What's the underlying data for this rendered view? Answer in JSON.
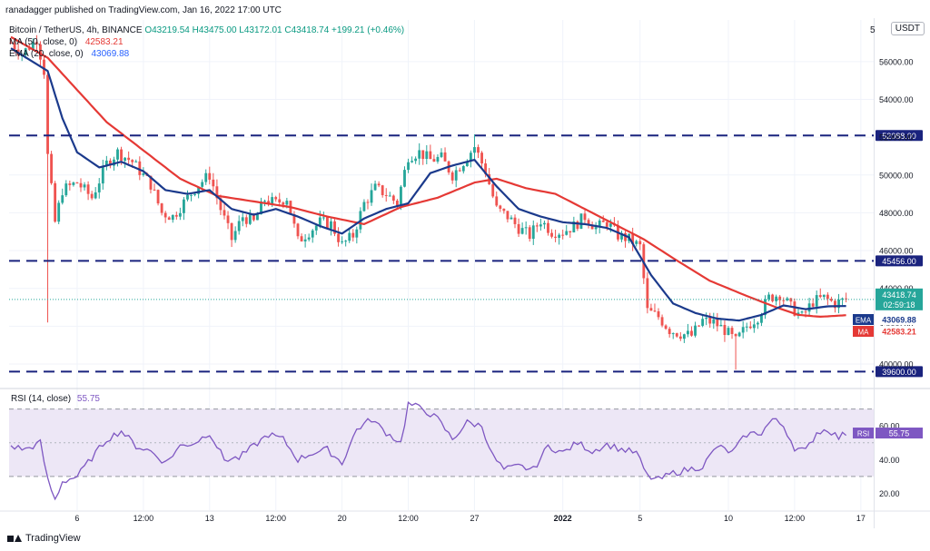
{
  "attribution": "ranadagger published on TradingView.com, Jan 16, 2022 17:00 UTC",
  "footer_brand": "TradingView",
  "header": {
    "symbol": "Bitcoin / TetherUS, 4h, BINANCE",
    "ohlc": "O43219.54 H43475.00 L43172.01 C43418.74 +199.21 (+0.46%)",
    "ma_label": "MA (50, close, 0)",
    "ma_value": "42583.21",
    "ema_label": "EMA (20, close, 0)",
    "ema_value": "43069.88",
    "unit_label": "USDT",
    "unit_prefix": "5"
  },
  "rsi_header": {
    "label": "RSI (14, close)",
    "value": "55.75"
  },
  "colors": {
    "up": "#26a69a",
    "down": "#ef5350",
    "ema": "#2962ff",
    "ema_line": "#1b3a8c",
    "ma": "#e53935",
    "level": "#1a237e",
    "rsi": "#7e57c2",
    "rsi_band": "#ede7f6",
    "price_tag": "#26a69a"
  },
  "chart_data": {
    "type": "candlestick",
    "title": "Bitcoin / TetherUS, 4h, BINANCE",
    "timeframe": "4h",
    "ylim": [
      38800,
      58200
    ],
    "y_ticks": [
      40000,
      42000,
      44000,
      46000,
      48000,
      50000,
      52000,
      54000,
      56000
    ],
    "y_tick_labels": [
      "40000.00",
      "42000.00",
      "44000.00",
      "46000.00",
      "48000.00",
      "50000.00",
      "52000.00",
      "54000.00",
      "56000.00"
    ],
    "x_ticks": [
      {
        "bar": 18,
        "label": "6"
      },
      {
        "bar": 36,
        "label": "12:00"
      },
      {
        "bar": 54,
        "label": "13"
      },
      {
        "bar": 72,
        "label": "12:00"
      },
      {
        "bar": 90,
        "label": "20"
      },
      {
        "bar": 108,
        "label": "12:00"
      },
      {
        "bar": 126,
        "label": "27"
      },
      {
        "bar": 150,
        "label": "2022"
      },
      {
        "bar": 171,
        "label": "5"
      },
      {
        "bar": 195,
        "label": "10"
      },
      {
        "bar": 213,
        "label": "12:00"
      },
      {
        "bar": 231,
        "label": "17"
      }
    ],
    "bar_count": 228,
    "horizontal_levels": [
      {
        "value": 52088.0,
        "label": "52088.00"
      },
      {
        "value": 45456.0,
        "label": "45456.00"
      },
      {
        "value": 39600.0,
        "label": "39600.00"
      }
    ],
    "price_anchors": [
      {
        "bar": 0,
        "close": 57000
      },
      {
        "bar": 3,
        "close": 56400
      },
      {
        "bar": 7,
        "close": 57200
      },
      {
        "bar": 9,
        "close": 55500
      },
      {
        "bar": 10,
        "close": 51000
      },
      {
        "bar": 12,
        "close": 47500
      },
      {
        "bar": 14,
        "close": 49200
      },
      {
        "bar": 18,
        "close": 49600
      },
      {
        "bar": 22,
        "close": 48800
      },
      {
        "bar": 26,
        "close": 50600
      },
      {
        "bar": 29,
        "close": 51200
      },
      {
        "bar": 33,
        "close": 50700
      },
      {
        "bar": 38,
        "close": 49500
      },
      {
        "bar": 41,
        "close": 48000
      },
      {
        "bar": 44,
        "close": 47800
      },
      {
        "bar": 48,
        "close": 48800
      },
      {
        "bar": 51,
        "close": 49500
      },
      {
        "bar": 54,
        "close": 50000
      },
      {
        "bar": 57,
        "close": 48200
      },
      {
        "bar": 60,
        "close": 46600
      },
      {
        "bar": 63,
        "close": 47800
      },
      {
        "bar": 66,
        "close": 47500
      },
      {
        "bar": 69,
        "close": 48700
      },
      {
        "bar": 72,
        "close": 48500
      },
      {
        "bar": 75,
        "close": 48800
      },
      {
        "bar": 78,
        "close": 46500
      },
      {
        "bar": 81,
        "close": 47000
      },
      {
        "bar": 84,
        "close": 47500
      },
      {
        "bar": 87,
        "close": 47400
      },
      {
        "bar": 90,
        "close": 46300
      },
      {
        "bar": 93,
        "close": 46800
      },
      {
        "bar": 96,
        "close": 48500
      },
      {
        "bar": 99,
        "close": 49300
      },
      {
        "bar": 102,
        "close": 49000
      },
      {
        "bar": 105,
        "close": 48500
      },
      {
        "bar": 108,
        "close": 51000
      },
      {
        "bar": 111,
        "close": 51200
      },
      {
        "bar": 114,
        "close": 50800
      },
      {
        "bar": 117,
        "close": 50900
      },
      {
        "bar": 120,
        "close": 50000
      },
      {
        "bar": 123,
        "close": 50700
      },
      {
        "bar": 126,
        "close": 51500
      },
      {
        "bar": 129,
        "close": 50200
      },
      {
        "bar": 132,
        "close": 48200
      },
      {
        "bar": 135,
        "close": 47800
      },
      {
        "bar": 138,
        "close": 47200
      },
      {
        "bar": 141,
        "close": 46800
      },
      {
        "bar": 144,
        "close": 47600
      },
      {
        "bar": 147,
        "close": 47000
      },
      {
        "bar": 150,
        "close": 47000
      },
      {
        "bar": 153,
        "close": 47300
      },
      {
        "bar": 156,
        "close": 47800
      },
      {
        "bar": 159,
        "close": 47200
      },
      {
        "bar": 162,
        "close": 47500
      },
      {
        "bar": 165,
        "close": 46800
      },
      {
        "bar": 168,
        "close": 46600
      },
      {
        "bar": 171,
        "close": 46200
      },
      {
        "bar": 173,
        "close": 42800
      },
      {
        "bar": 176,
        "close": 42500
      },
      {
        "bar": 179,
        "close": 41800
      },
      {
        "bar": 182,
        "close": 41600
      },
      {
        "bar": 185,
        "close": 41500
      },
      {
        "bar": 188,
        "close": 42300
      },
      {
        "bar": 191,
        "close": 42200
      },
      {
        "bar": 194,
        "close": 41800
      },
      {
        "bar": 197,
        "close": 41200
      },
      {
        "bar": 200,
        "close": 42000
      },
      {
        "bar": 203,
        "close": 42500
      },
      {
        "bar": 206,
        "close": 43500
      },
      {
        "bar": 209,
        "close": 43700
      },
      {
        "bar": 212,
        "close": 43000
      },
      {
        "bar": 215,
        "close": 42500
      },
      {
        "bar": 218,
        "close": 43300
      },
      {
        "bar": 221,
        "close": 43500
      },
      {
        "bar": 224,
        "close": 43200
      },
      {
        "bar": 227,
        "close": 43418.74
      }
    ],
    "ema20_anchors": [
      {
        "bar": 0,
        "value": 56700
      },
      {
        "bar": 10,
        "value": 55500
      },
      {
        "bar": 14,
        "value": 53000
      },
      {
        "bar": 18,
        "value": 51200
      },
      {
        "bar": 24,
        "value": 50400
      },
      {
        "bar": 30,
        "value": 50700
      },
      {
        "bar": 36,
        "value": 50200
      },
      {
        "bar": 42,
        "value": 49200
      },
      {
        "bar": 48,
        "value": 49000
      },
      {
        "bar": 54,
        "value": 49200
      },
      {
        "bar": 60,
        "value": 48200
      },
      {
        "bar": 66,
        "value": 47900
      },
      {
        "bar": 72,
        "value": 48200
      },
      {
        "bar": 78,
        "value": 47800
      },
      {
        "bar": 84,
        "value": 47300
      },
      {
        "bar": 90,
        "value": 46900
      },
      {
        "bar": 96,
        "value": 47700
      },
      {
        "bar": 102,
        "value": 48200
      },
      {
        "bar": 108,
        "value": 48500
      },
      {
        "bar": 114,
        "value": 50100
      },
      {
        "bar": 120,
        "value": 50500
      },
      {
        "bar": 126,
        "value": 50800
      },
      {
        "bar": 132,
        "value": 49400
      },
      {
        "bar": 138,
        "value": 48200
      },
      {
        "bar": 144,
        "value": 47800
      },
      {
        "bar": 150,
        "value": 47500
      },
      {
        "bar": 156,
        "value": 47400
      },
      {
        "bar": 162,
        "value": 47200
      },
      {
        "bar": 168,
        "value": 46700
      },
      {
        "bar": 174,
        "value": 44700
      },
      {
        "bar": 180,
        "value": 43200
      },
      {
        "bar": 186,
        "value": 42700
      },
      {
        "bar": 192,
        "value": 42400
      },
      {
        "bar": 198,
        "value": 42300
      },
      {
        "bar": 204,
        "value": 42600
      },
      {
        "bar": 210,
        "value": 43100
      },
      {
        "bar": 216,
        "value": 42900
      },
      {
        "bar": 222,
        "value": 43050
      },
      {
        "bar": 227,
        "value": 43069.88
      }
    ],
    "ma50_anchors": [
      {
        "bar": 0,
        "value": 57300
      },
      {
        "bar": 10,
        "value": 56200
      },
      {
        "bar": 18,
        "value": 54500
      },
      {
        "bar": 26,
        "value": 52800
      },
      {
        "bar": 36,
        "value": 51300
      },
      {
        "bar": 46,
        "value": 49800
      },
      {
        "bar": 56,
        "value": 48900
      },
      {
        "bar": 66,
        "value": 48600
      },
      {
        "bar": 76,
        "value": 48300
      },
      {
        "bar": 86,
        "value": 47800
      },
      {
        "bar": 96,
        "value": 47400
      },
      {
        "bar": 106,
        "value": 48300
      },
      {
        "bar": 116,
        "value": 48800
      },
      {
        "bar": 126,
        "value": 49600
      },
      {
        "bar": 132,
        "value": 49800
      },
      {
        "bar": 140,
        "value": 49300
      },
      {
        "bar": 148,
        "value": 49000
      },
      {
        "bar": 156,
        "value": 48200
      },
      {
        "bar": 164,
        "value": 47400
      },
      {
        "bar": 172,
        "value": 46600
      },
      {
        "bar": 180,
        "value": 45600
      },
      {
        "bar": 190,
        "value": 44400
      },
      {
        "bar": 200,
        "value": 43600
      },
      {
        "bar": 208,
        "value": 43000
      },
      {
        "bar": 214,
        "value": 42600
      },
      {
        "bar": 220,
        "value": 42500
      },
      {
        "bar": 227,
        "value": 42583.21
      }
    ],
    "price_labels": [
      {
        "name": "last-price",
        "value": 43418.74,
        "text": "43418.74",
        "sub": "02:59:18"
      },
      {
        "name": "ema",
        "value": 43069.88,
        "text": "43069.88",
        "tag": "EMA"
      },
      {
        "name": "ma",
        "value": 42583.21,
        "text": "42583.21",
        "tag": "MA"
      }
    ],
    "rsi": {
      "ylim": [
        10,
        80
      ],
      "band": [
        30,
        70
      ],
      "mid": 50,
      "y_ticks": [
        20,
        40,
        60
      ],
      "y_tick_labels": [
        "20.00",
        "40.00",
        "60.00"
      ],
      "last": 55.75,
      "anchors": [
        {
          "bar": 0,
          "value": 48
        },
        {
          "bar": 4,
          "value": 46
        },
        {
          "bar": 8,
          "value": 50
        },
        {
          "bar": 10,
          "value": 28
        },
        {
          "bar": 12,
          "value": 16
        },
        {
          "bar": 14,
          "value": 27
        },
        {
          "bar": 18,
          "value": 30
        },
        {
          "bar": 22,
          "value": 41
        },
        {
          "bar": 26,
          "value": 52
        },
        {
          "bar": 30,
          "value": 57
        },
        {
          "bar": 34,
          "value": 48
        },
        {
          "bar": 38,
          "value": 45
        },
        {
          "bar": 42,
          "value": 38
        },
        {
          "bar": 46,
          "value": 48
        },
        {
          "bar": 50,
          "value": 50
        },
        {
          "bar": 54,
          "value": 56
        },
        {
          "bar": 58,
          "value": 40
        },
        {
          "bar": 62,
          "value": 41
        },
        {
          "bar": 66,
          "value": 48
        },
        {
          "bar": 70,
          "value": 55
        },
        {
          "bar": 74,
          "value": 52
        },
        {
          "bar": 78,
          "value": 40
        },
        {
          "bar": 82,
          "value": 44
        },
        {
          "bar": 86,
          "value": 46
        },
        {
          "bar": 90,
          "value": 38
        },
        {
          "bar": 94,
          "value": 58
        },
        {
          "bar": 98,
          "value": 64
        },
        {
          "bar": 102,
          "value": 56
        },
        {
          "bar": 106,
          "value": 50
        },
        {
          "bar": 108,
          "value": 73
        },
        {
          "bar": 112,
          "value": 70
        },
        {
          "bar": 116,
          "value": 64
        },
        {
          "bar": 120,
          "value": 52
        },
        {
          "bar": 124,
          "value": 62
        },
        {
          "bar": 128,
          "value": 60
        },
        {
          "bar": 131,
          "value": 42
        },
        {
          "bar": 134,
          "value": 34
        },
        {
          "bar": 138,
          "value": 36
        },
        {
          "bar": 142,
          "value": 34
        },
        {
          "bar": 146,
          "value": 48
        },
        {
          "bar": 150,
          "value": 44
        },
        {
          "bar": 154,
          "value": 50
        },
        {
          "bar": 158,
          "value": 45
        },
        {
          "bar": 162,
          "value": 49
        },
        {
          "bar": 166,
          "value": 46
        },
        {
          "bar": 170,
          "value": 44
        },
        {
          "bar": 173,
          "value": 30
        },
        {
          "bar": 176,
          "value": 28
        },
        {
          "bar": 180,
          "value": 32
        },
        {
          "bar": 184,
          "value": 34
        },
        {
          "bar": 188,
          "value": 36
        },
        {
          "bar": 192,
          "value": 48
        },
        {
          "bar": 196,
          "value": 44
        },
        {
          "bar": 200,
          "value": 55
        },
        {
          "bar": 204,
          "value": 56
        },
        {
          "bar": 207,
          "value": 64
        },
        {
          "bar": 210,
          "value": 60
        },
        {
          "bar": 213,
          "value": 47
        },
        {
          "bar": 216,
          "value": 45
        },
        {
          "bar": 219,
          "value": 56
        },
        {
          "bar": 222,
          "value": 58
        },
        {
          "bar": 225,
          "value": 53
        },
        {
          "bar": 227,
          "value": 55.75
        }
      ]
    }
  }
}
